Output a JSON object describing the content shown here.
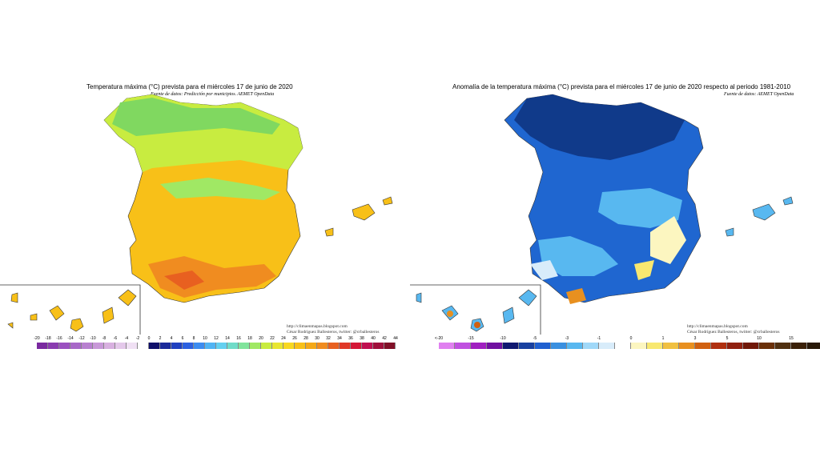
{
  "left": {
    "title": "Temperatura máxima (°C) prevista para el miércoles 17 de junio de 2020",
    "source": "Fuente de datos: Predicción por municipios. AEMET OpenData",
    "credit_line1": "http://climaenmapas.blogspot.com",
    "credit_line2": "César Rodríguez Ballesteros, twitter: @crballesteros",
    "legend_labels": [
      "-20",
      "-18",
      "-16",
      "-14",
      "-12",
      "-10",
      "-8",
      "-6",
      "-4",
      "-2",
      "0",
      "2",
      "4",
      "6",
      "8",
      "10",
      "12",
      "14",
      "16",
      "18",
      "20",
      "22",
      "24",
      "26",
      "28",
      "30",
      "32",
      "34",
      "36",
      "38",
      "40",
      "42",
      "44"
    ],
    "legend_colors": [
      "#7a2aa0",
      "#8a3cb0",
      "#9a50c0",
      "#a868c8",
      "#b880d0",
      "#c898d8",
      "#d8b0e0",
      "#e4c8ea",
      "#f0e0f4",
      "#ffffff",
      "#10106a",
      "#1a2a9a",
      "#2040c0",
      "#2c60e0",
      "#3c8cf0",
      "#50b4f4",
      "#64d0f0",
      "#70dcc8",
      "#80e49c",
      "#a0e864",
      "#c8ec40",
      "#e8e630",
      "#f8d820",
      "#f8c018",
      "#f4a818",
      "#f08c20",
      "#e86020",
      "#e03828",
      "#d41838",
      "#c01050",
      "#a0103c",
      "#801028"
    ]
  },
  "right": {
    "title": "Anomalía de la temperatura máxima (°C) prevista para el miércoles 17 de junio de 2020 respecto al periodo 1981-2010",
    "source": "Fuente de datos: AEMET OpenData",
    "credit_line1": "http://climaenmapas.blogspot.com",
    "credit_line2": "César Rodríguez Ballesteros, twitter: @crballesteros",
    "legend_labels": [
      "<-20",
      "",
      "-15",
      "",
      "-10",
      "",
      "-5",
      "",
      "-3",
      "",
      "-1",
      "",
      "0",
      "",
      "1",
      "",
      "3",
      "",
      "5",
      "",
      "10",
      "",
      "15",
      "",
      ">20"
    ],
    "legend_colors": [
      "#e080f0",
      "#c050e0",
      "#a020c0",
      "#7010a0",
      "#101870",
      "#1840a0",
      "#2060d0",
      "#3a90e0",
      "#58b8f0",
      "#a0d8f8",
      "#d8ecfa",
      "#ffffff",
      "#fcf6c0",
      "#f8e870",
      "#f0c040",
      "#e89020",
      "#d06010",
      "#b03010",
      "#902010",
      "#701808",
      "#6a3008",
      "#503010",
      "#3a2008",
      "#281808"
    ]
  },
  "colors": {
    "tmax_cool": "#80d860",
    "tmax_mild": "#c8ec40",
    "tmax_warm": "#f8c018",
    "tmax_hot": "#f08c20",
    "anom_strong": "#103a8a",
    "anom_mid": "#1f66d0",
    "anom_light": "#58b8f0",
    "anom_pale": "#a0d8f8"
  }
}
